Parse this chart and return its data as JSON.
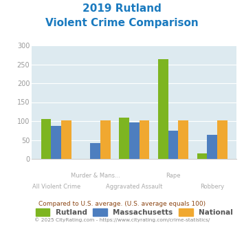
{
  "title_line1": "2019 Rutland",
  "title_line2": "Violent Crime Comparison",
  "title_color": "#1a7abf",
  "categories": [
    "All Violent Crime",
    "Murder & Mans...",
    "Aggravated Assault",
    "Rape",
    "Robbery"
  ],
  "cat_labels_row1": [
    "",
    "Murder & Mans...",
    "",
    "Rape",
    ""
  ],
  "cat_labels_row2": [
    "All Violent Crime",
    "",
    "Aggravated Assault",
    "",
    "Robbery"
  ],
  "rutland": [
    105,
    0,
    110,
    263,
    15
  ],
  "massachusetts": [
    88,
    42,
    97,
    75,
    63
  ],
  "national": [
    102,
    102,
    101,
    101,
    101
  ],
  "rutland_color": "#7db521",
  "massachusetts_color": "#4d7ebf",
  "national_color": "#f0a830",
  "ylim": [
    0,
    300
  ],
  "yticks": [
    0,
    50,
    100,
    150,
    200,
    250,
    300
  ],
  "bg_color": "#ddeaf0",
  "legend_labels": [
    "Rutland",
    "Massachusetts",
    "National"
  ],
  "footnote1": "Compared to U.S. average. (U.S. average equals 100)",
  "footnote2": "© 2025 CityRating.com - https://www.cityrating.com/crime-statistics/",
  "footnote1_color": "#8b4513",
  "footnote2_color": "#888888"
}
